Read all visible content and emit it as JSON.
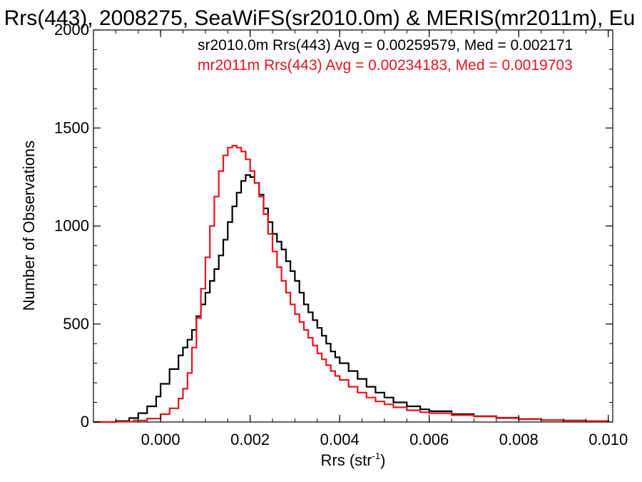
{
  "chart_data": {
    "type": "line",
    "title": "Rrs(443), 2008275, SeaWiFS(sr2010.0m) & MERIS(mr2011m), Eu",
    "xlabel_main": "Rrs (str",
    "xlabel_sup": "-1",
    "xlabel_close": ")",
    "ylabel": "Number of Observations",
    "xlim": [
      -0.0015,
      0.0101
    ],
    "ylim": [
      0,
      2000
    ],
    "x_ticks": [
      {
        "value": 0.0,
        "label": "0.000"
      },
      {
        "value": 0.002,
        "label": "0.002"
      },
      {
        "value": 0.004,
        "label": "0.004"
      },
      {
        "value": 0.006,
        "label": "0.006"
      },
      {
        "value": 0.008,
        "label": "0.008"
      },
      {
        "value": 0.01,
        "label": "0.010"
      }
    ],
    "y_ticks": [
      {
        "value": 0,
        "label": "0"
      },
      {
        "value": 500,
        "label": "500"
      },
      {
        "value": 1000,
        "label": "1000"
      },
      {
        "value": 1500,
        "label": "1500"
      },
      {
        "value": 2000,
        "label": "2000"
      }
    ],
    "annotations": [
      {
        "text": "sr2010.0m Rrs(443) Avg = 0.00259579, Med = 0.002171",
        "color": "#000000"
      },
      {
        "text": "mr2011m Rrs(443) Avg = 0.00234183, Med = 0.0019703",
        "color": "#e8141e"
      }
    ],
    "series": [
      {
        "color": "#000000",
        "points": [
          [
            -0.0015,
            0
          ],
          [
            -0.001,
            5
          ],
          [
            -0.0007,
            20
          ],
          [
            -0.0005,
            45
          ],
          [
            -0.0003,
            80
          ],
          [
            -0.0001,
            130
          ],
          [
            0.0,
            195
          ],
          [
            0.0002,
            270
          ],
          [
            0.0004,
            340
          ],
          [
            0.0005,
            380
          ],
          [
            0.0006,
            420
          ],
          [
            0.0007,
            470
          ],
          [
            0.0008,
            540
          ],
          [
            0.0009,
            600
          ],
          [
            0.001,
            660
          ],
          [
            0.0011,
            720
          ],
          [
            0.0012,
            780
          ],
          [
            0.0013,
            850
          ],
          [
            0.0014,
            930
          ],
          [
            0.0015,
            1020
          ],
          [
            0.0016,
            1100
          ],
          [
            0.0017,
            1170
          ],
          [
            0.0018,
            1230
          ],
          [
            0.0019,
            1260
          ],
          [
            0.002,
            1250
          ],
          [
            0.0021,
            1220
          ],
          [
            0.0022,
            1160
          ],
          [
            0.0023,
            1090
          ],
          [
            0.0024,
            1020
          ],
          [
            0.0025,
            960
          ],
          [
            0.0026,
            920
          ],
          [
            0.0027,
            880
          ],
          [
            0.0028,
            820
          ],
          [
            0.0029,
            770
          ],
          [
            0.003,
            720
          ],
          [
            0.0031,
            660
          ],
          [
            0.0032,
            600
          ],
          [
            0.0033,
            560
          ],
          [
            0.0034,
            520
          ],
          [
            0.0035,
            480
          ],
          [
            0.0036,
            440
          ],
          [
            0.0037,
            400
          ],
          [
            0.0038,
            360
          ],
          [
            0.0039,
            330
          ],
          [
            0.004,
            300
          ],
          [
            0.0042,
            260
          ],
          [
            0.0044,
            220
          ],
          [
            0.0046,
            180
          ],
          [
            0.0048,
            150
          ],
          [
            0.005,
            125
          ],
          [
            0.0052,
            100
          ],
          [
            0.0055,
            80
          ],
          [
            0.0058,
            65
          ],
          [
            0.006,
            55
          ],
          [
            0.0065,
            40
          ],
          [
            0.007,
            30
          ],
          [
            0.0075,
            22
          ],
          [
            0.008,
            15
          ],
          [
            0.0085,
            10
          ],
          [
            0.009,
            8
          ],
          [
            0.0095,
            5
          ],
          [
            0.01,
            4
          ]
        ]
      },
      {
        "color": "#e8141e",
        "points": [
          [
            -0.0015,
            0
          ],
          [
            -0.001,
            2
          ],
          [
            -0.0006,
            8
          ],
          [
            -0.0003,
            18
          ],
          [
            0.0,
            40
          ],
          [
            0.0002,
            70
          ],
          [
            0.0004,
            120
          ],
          [
            0.0005,
            170
          ],
          [
            0.0006,
            250
          ],
          [
            0.0007,
            380
          ],
          [
            0.0008,
            530
          ],
          [
            0.0009,
            680
          ],
          [
            0.001,
            840
          ],
          [
            0.0011,
            1000
          ],
          [
            0.0012,
            1150
          ],
          [
            0.0013,
            1280
          ],
          [
            0.0014,
            1360
          ],
          [
            0.0015,
            1400
          ],
          [
            0.0016,
            1410
          ],
          [
            0.0017,
            1400
          ],
          [
            0.0018,
            1380
          ],
          [
            0.0019,
            1340
          ],
          [
            0.002,
            1280
          ],
          [
            0.0021,
            1220
          ],
          [
            0.0022,
            1150
          ],
          [
            0.0023,
            1060
          ],
          [
            0.0024,
            960
          ],
          [
            0.0025,
            870
          ],
          [
            0.0026,
            790
          ],
          [
            0.0027,
            720
          ],
          [
            0.0028,
            660
          ],
          [
            0.0029,
            600
          ],
          [
            0.003,
            550
          ],
          [
            0.0031,
            510
          ],
          [
            0.0032,
            470
          ],
          [
            0.0033,
            430
          ],
          [
            0.0034,
            390
          ],
          [
            0.0035,
            350
          ],
          [
            0.0036,
            320
          ],
          [
            0.0037,
            290
          ],
          [
            0.0038,
            260
          ],
          [
            0.0039,
            235
          ],
          [
            0.004,
            215
          ],
          [
            0.0042,
            180
          ],
          [
            0.0044,
            150
          ],
          [
            0.0046,
            125
          ],
          [
            0.0048,
            105
          ],
          [
            0.005,
            90
          ],
          [
            0.0052,
            75
          ],
          [
            0.0055,
            60
          ],
          [
            0.0058,
            50
          ],
          [
            0.006,
            45
          ],
          [
            0.0065,
            35
          ],
          [
            0.007,
            28
          ],
          [
            0.0075,
            20
          ],
          [
            0.008,
            14
          ],
          [
            0.0085,
            10
          ],
          [
            0.009,
            7
          ],
          [
            0.0095,
            5
          ],
          [
            0.01,
            4
          ]
        ]
      }
    ]
  }
}
